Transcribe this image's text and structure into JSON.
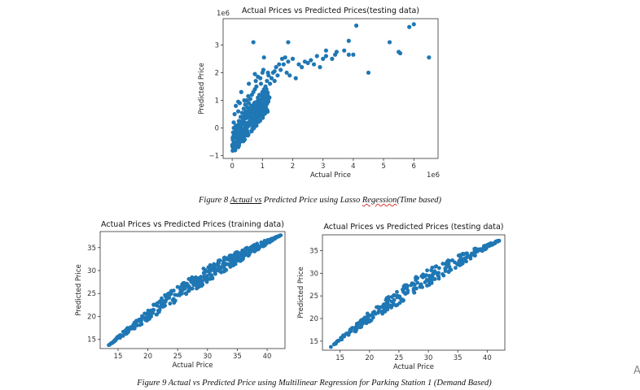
{
  "chart_data": [
    {
      "type": "scatter",
      "title": "Actual Prices vs Predicted Prices(testing data)",
      "xlabel": "Actual Price",
      "ylabel": "Predicted Price",
      "x_offset_label": "1e6",
      "y_offset_label": "1e6",
      "xlim": [
        -0.3,
        6.8
      ],
      "ylim": [
        -1.1,
        3.95
      ],
      "xticks": [
        0,
        1,
        2,
        3,
        4,
        5,
        6
      ],
      "yticks": [
        -1,
        0,
        1,
        2,
        3
      ],
      "color": "#1f77b4",
      "points": [
        [
          0.1,
          -0.8
        ],
        [
          0.05,
          -0.7
        ],
        [
          0.15,
          -0.5
        ],
        [
          0.1,
          -0.3
        ],
        [
          0.2,
          -0.2
        ],
        [
          0.12,
          -0.1
        ],
        [
          0.25,
          0.0
        ],
        [
          0.18,
          0.1
        ],
        [
          0.3,
          0.15
        ],
        [
          0.22,
          0.25
        ],
        [
          0.35,
          0.3
        ],
        [
          0.28,
          0.4
        ],
        [
          0.4,
          0.45
        ],
        [
          0.33,
          0.55
        ],
        [
          0.45,
          0.6
        ],
        [
          0.38,
          0.7
        ],
        [
          0.5,
          0.75
        ],
        [
          0.43,
          0.85
        ],
        [
          0.55,
          0.9
        ],
        [
          0.48,
          1.0
        ],
        [
          0.6,
          1.05
        ],
        [
          0.53,
          1.15
        ],
        [
          0.65,
          1.2
        ],
        [
          0.58,
          0.5
        ],
        [
          0.7,
          1.3
        ],
        [
          0.63,
          0.8
        ],
        [
          0.75,
          1.4
        ],
        [
          0.68,
          0.6
        ],
        [
          0.8,
          1.5
        ],
        [
          0.73,
          0.9
        ],
        [
          0.85,
          1.1
        ],
        [
          0.78,
          1.7
        ],
        [
          0.9,
          1.2
        ],
        [
          0.83,
          0.7
        ],
        [
          0.95,
          1.6
        ],
        [
          0.88,
          1.0
        ],
        [
          1.0,
          1.3
        ],
        [
          0.93,
          1.8
        ],
        [
          1.05,
          1.4
        ],
        [
          0.98,
          0.9
        ],
        [
          1.1,
          1.5
        ],
        [
          1.03,
          2.1
        ],
        [
          1.15,
          1.7
        ],
        [
          1.08,
          1.2
        ],
        [
          1.2,
          1.9
        ],
        [
          1.13,
          1.4
        ],
        [
          1.25,
          1.6
        ],
        [
          1.18,
          2.0
        ],
        [
          1.3,
          1.8
        ],
        [
          1.23,
          1.1
        ],
        [
          1.35,
          2.0
        ],
        [
          1.4,
          1.7
        ],
        [
          1.45,
          2.2
        ],
        [
          1.5,
          1.9
        ],
        [
          1.55,
          2.3
        ],
        [
          1.6,
          2.1
        ],
        [
          1.65,
          2.5
        ],
        [
          1.7,
          2.3
        ],
        [
          1.75,
          2.55
        ],
        [
          1.8,
          2.0
        ],
        [
          1.85,
          2.4
        ],
        [
          1.9,
          1.9
        ],
        [
          2.0,
          2.5
        ],
        [
          2.1,
          1.8
        ],
        [
          2.2,
          2.3
        ],
        [
          2.3,
          2.2
        ],
        [
          2.4,
          2.4
        ],
        [
          2.5,
          2.35
        ],
        [
          2.6,
          2.45
        ],
        [
          2.7,
          2.3
        ],
        [
          2.8,
          2.6
        ],
        [
          2.9,
          2.2
        ],
        [
          3.0,
          2.5
        ],
        [
          3.1,
          2.6
        ],
        [
          3.3,
          2.5
        ],
        [
          3.4,
          2.65
        ],
        [
          3.45,
          2.75
        ],
        [
          3.7,
          2.8
        ],
        [
          3.85,
          2.65
        ],
        [
          4.0,
          2.65
        ],
        [
          0.05,
          0.2
        ],
        [
          0.08,
          0.5
        ],
        [
          0.12,
          0.8
        ],
        [
          0.15,
          -0.15
        ],
        [
          0.2,
          0.6
        ],
        [
          0.25,
          0.9
        ],
        [
          0.3,
          -0.05
        ],
        [
          0.35,
          0.2
        ],
        [
          0.4,
          1.0
        ],
        [
          0.45,
          0.35
        ],
        [
          0.5,
          0.5
        ],
        [
          0.55,
          0.65
        ],
        [
          0.6,
          0.3
        ],
        [
          0.65,
          0.4
        ],
        [
          0.7,
          0.55
        ],
        [
          0.75,
          0.7
        ],
        [
          0.8,
          0.85
        ],
        [
          0.85,
          0.45
        ],
        [
          0.9,
          0.6
        ],
        [
          0.95,
          0.75
        ],
        [
          0.7,
          3.1
        ],
        [
          1.05,
          2.55
        ],
        [
          1.85,
          3.1
        ],
        [
          3.1,
          2.8
        ],
        [
          3.85,
          3.15
        ],
        [
          4.1,
          3.7
        ],
        [
          4.5,
          2.0
        ],
        [
          5.2,
          3.1
        ],
        [
          5.5,
          2.75
        ],
        [
          5.55,
          2.7
        ],
        [
          5.85,
          3.65
        ],
        [
          6.0,
          3.75
        ],
        [
          6.5,
          2.55
        ],
        [
          0.3,
          1.3
        ],
        [
          0.55,
          1.6
        ],
        [
          0.2,
          0.95
        ],
        [
          0.85,
          1.85
        ],
        [
          1.0,
          2.0
        ],
        [
          1.4,
          2.05
        ],
        [
          0.75,
          1.95
        ]
      ]
    },
    {
      "type": "scatter",
      "title": "Actual Prices vs Predicted Prices (training data)",
      "xlabel": "Actual Price",
      "ylabel": "Predicted Price",
      "xlim": [
        12,
        43
      ],
      "ylim": [
        13,
        38.5
      ],
      "xticks": [
        15,
        20,
        25,
        30,
        35,
        40
      ],
      "yticks": [
        15,
        20,
        25,
        30,
        35
      ],
      "color": "#1f77b4",
      "x_start": 13.3,
      "x_end": 42.3,
      "y_start": 13.6,
      "y_end": 37.7,
      "n_points": 480
    },
    {
      "type": "scatter",
      "title": "Actual Prices vs Predicted Prices (testing data)",
      "xlabel": "Actual Price",
      "ylabel": "Predicted Price",
      "xlim": [
        12,
        43
      ],
      "ylim": [
        13,
        38.5
      ],
      "xticks": [
        15,
        20,
        25,
        30,
        35,
        40
      ],
      "yticks": [
        15,
        20,
        25,
        30,
        35
      ],
      "color": "#1f77b4",
      "x_start": 13.3,
      "x_end": 42.3,
      "y_start": 13.6,
      "y_end": 37.4,
      "n_points": 300
    }
  ],
  "captions": {
    "fig8_prefix": "Figure 8 ",
    "fig8_actual": "Actual",
    "fig8_gap": " ",
    "fig8_vs": "vs",
    "fig8_middle": " Predicted Price using Lasso ",
    "fig8_regession": "Regession",
    "fig8_suffix": "(Time based)",
    "fig9": "Figure 9 Actual vs Predicted Price using Multilinear Regression for Parking Station 1 (Demand Based)"
  },
  "edge_glyph": "A"
}
